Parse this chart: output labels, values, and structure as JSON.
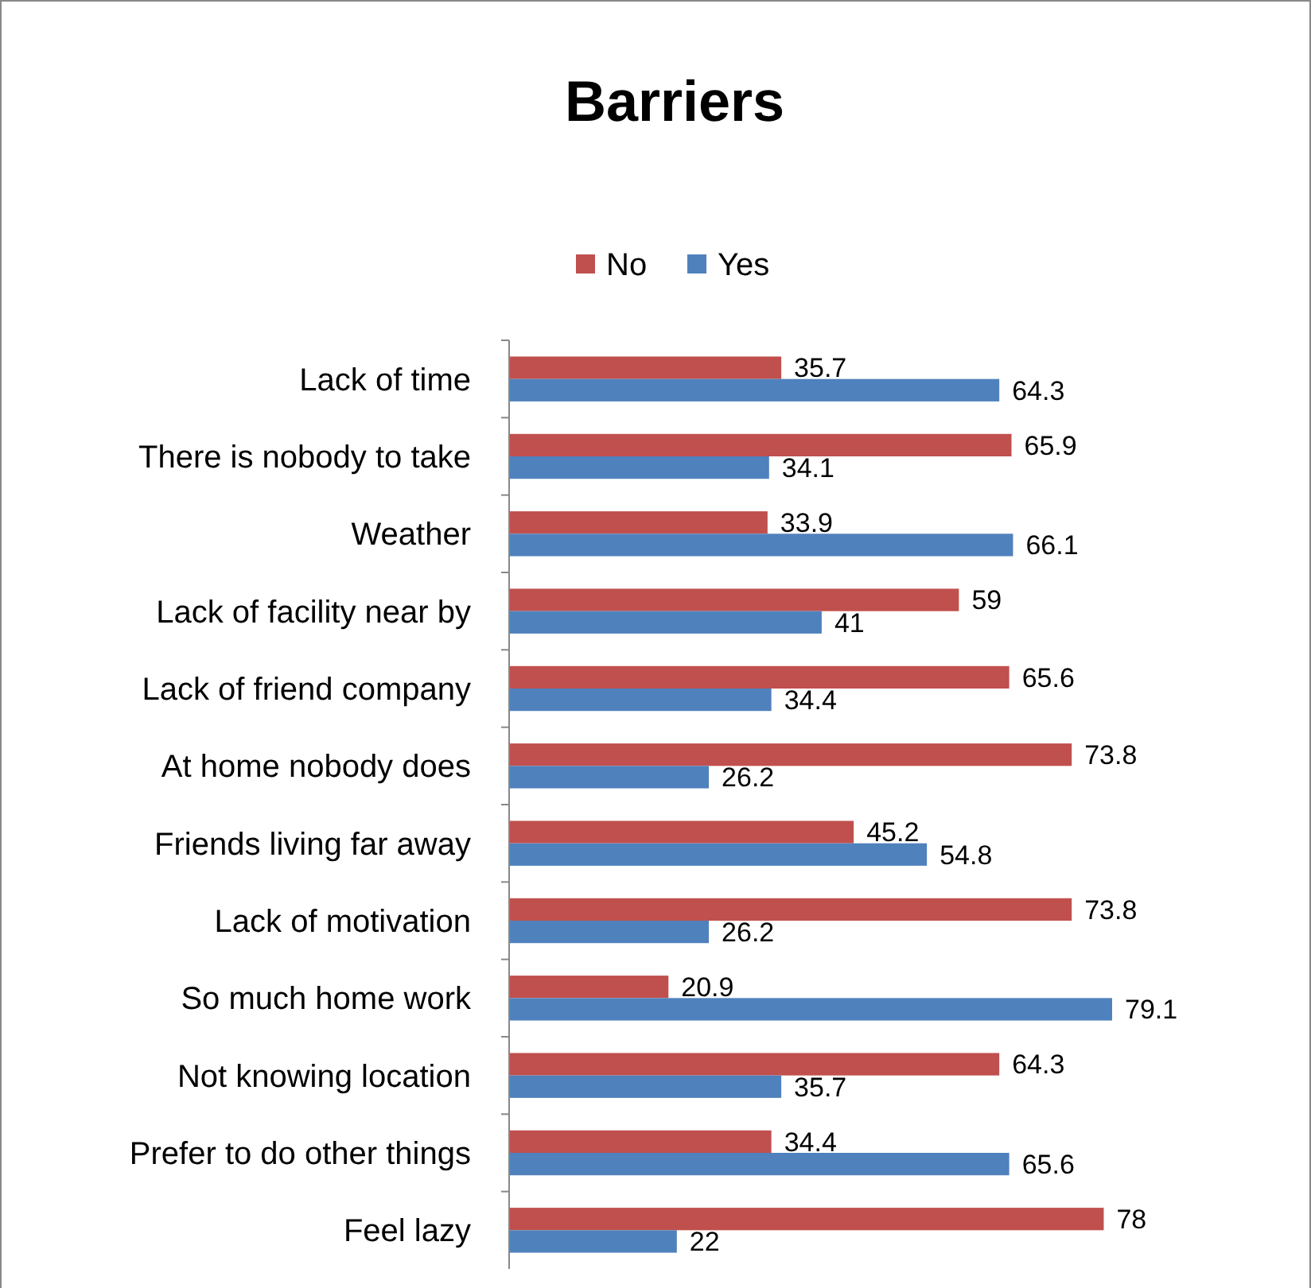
{
  "chart_data": {
    "type": "bar",
    "orientation": "horizontal",
    "title": "Barriers",
    "categories": [
      "Lack of time",
      "There is nobody to take",
      "Weather",
      "Lack of facility near by",
      "Lack of friend company",
      "At home nobody does",
      "Friends living far away",
      "Lack of motivation",
      "So much home work",
      "Not knowing location",
      "Prefer to do other things",
      "Feel lazy"
    ],
    "series": [
      {
        "name": "No",
        "color": "#c0504d",
        "values": [
          35.7,
          65.9,
          33.9,
          59,
          65.6,
          73.8,
          45.2,
          73.8,
          20.9,
          64.3,
          34.4,
          78
        ]
      },
      {
        "name": "Yes",
        "color": "#4f81bd",
        "values": [
          64.3,
          34.1,
          66.1,
          41,
          34.4,
          26.2,
          54.8,
          26.2,
          79.1,
          35.7,
          65.6,
          22
        ]
      }
    ],
    "data_labels": true,
    "legend": "top",
    "grid": false
  }
}
